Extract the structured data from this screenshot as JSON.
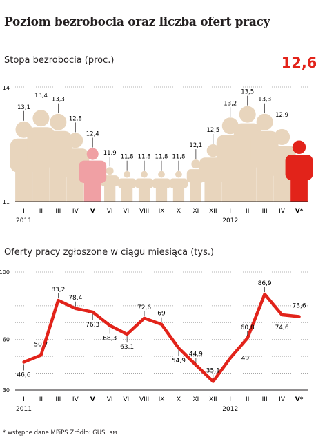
{
  "title": "Poziom bezrobocia oraz liczba ofert pracy",
  "footnote": {
    "text": "* wstępne dane MPiPS  Źródło: GUS",
    "credit": "RM"
  },
  "chart_data": [
    {
      "type": "bar",
      "title": "Stopa bezrobocia (proc.)",
      "ylim": [
        11,
        14
      ],
      "yticks": [
        "11",
        "14"
      ],
      "categories": [
        "I",
        "II",
        "III",
        "IV",
        "V",
        "VI",
        "VII",
        "VIII",
        "IX",
        "X",
        "XI",
        "XII",
        "I",
        "II",
        "III",
        "IV",
        "V*"
      ],
      "year_labels": [
        "2011",
        "2012"
      ],
      "values": [
        13.1,
        13.4,
        13.3,
        12.8,
        12.4,
        11.9,
        11.8,
        11.8,
        11.8,
        11.8,
        12.1,
        12.5,
        13.2,
        13.5,
        13.3,
        12.9,
        12.6
      ],
      "value_labels": [
        "13,1",
        "13,4",
        "13,3",
        "12,8",
        "12,4",
        "11,9",
        "11,8",
        "11,8",
        "11,8",
        "11,8",
        "12,1",
        "12,5",
        "13,2",
        "13,5",
        "13,3",
        "12,9",
        "12,6"
      ],
      "highlight": {
        "pink": [
          4
        ],
        "red": [
          16
        ]
      },
      "colors": {
        "base": "#e8d5bd",
        "pink": "#f0a0a4",
        "red": "#e2231a"
      }
    },
    {
      "type": "line",
      "title": "Oferty pracy zgłoszone w ciągu miesiąca (tys.)",
      "ylim": [
        30,
        100
      ],
      "yticks": [
        "30",
        "60",
        "100"
      ],
      "categories": [
        "I",
        "II",
        "III",
        "IV",
        "V",
        "VI",
        "VII",
        "VIII",
        "IX",
        "X",
        "XI",
        "XII",
        "I",
        "II",
        "III",
        "IV",
        "V*"
      ],
      "year_labels": [
        "2011",
        "2012"
      ],
      "values": [
        46.6,
        50.7,
        83.2,
        78.4,
        76.3,
        68.3,
        63.1,
        72.6,
        69,
        54.9,
        44.9,
        35.1,
        49,
        60.8,
        86.9,
        74.6,
        73.6
      ],
      "value_labels": [
        "46,6",
        "50,7",
        "83,2",
        "78,4",
        "76,3",
        "68,3",
        "63,1",
        "72,6",
        "69",
        "54,9",
        "44,9",
        "35,1",
        "49",
        "60,8",
        "86,9",
        "74,6",
        "73,6"
      ],
      "colors": {
        "line": "#e2231a"
      }
    }
  ]
}
